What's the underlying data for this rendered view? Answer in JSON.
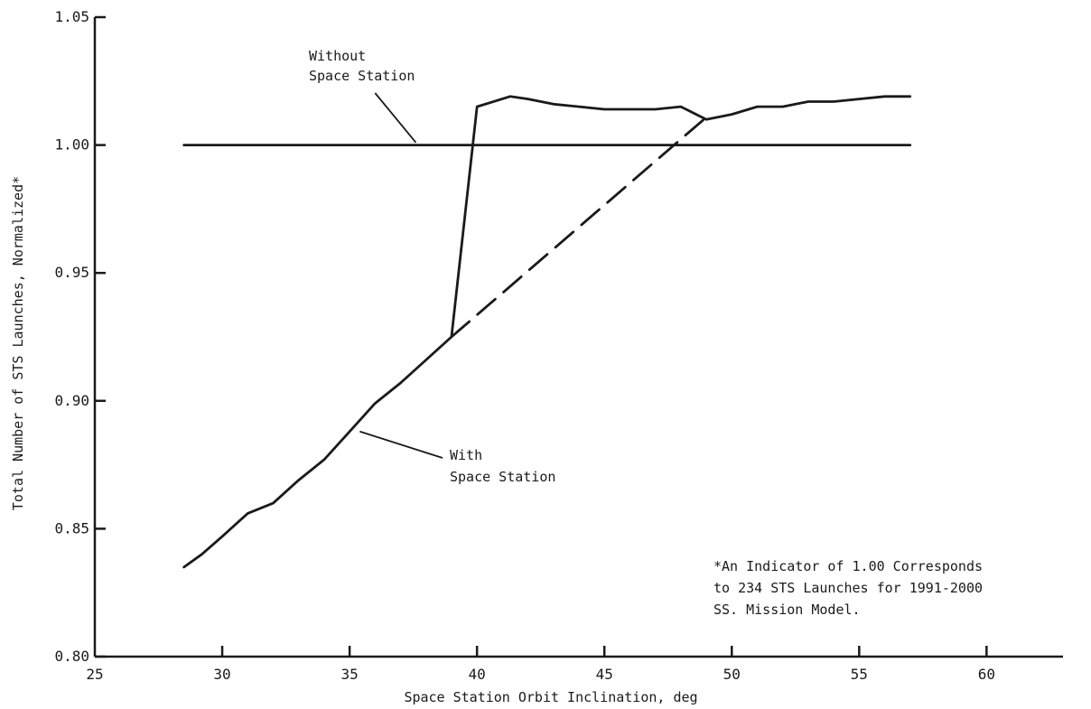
{
  "chart_data": {
    "type": "line",
    "title": "",
    "xlabel": "Space Station Orbit Inclination, deg",
    "ylabel": "Total Number of STS Launches, Normalized*",
    "xlim": [
      25,
      63
    ],
    "ylim": [
      0.8,
      1.05
    ],
    "x_ticks": [
      25,
      30,
      35,
      40,
      45,
      50,
      55,
      60
    ],
    "y_ticks": [
      0.8,
      0.85,
      0.9,
      0.95,
      1.0,
      1.05
    ],
    "x_tick_labels": [
      "25",
      "30",
      "35",
      "40",
      "45",
      "50",
      "55",
      "60"
    ],
    "y_tick_labels": [
      "0.80",
      "0.85",
      "0.90",
      "0.95",
      "1.00",
      "1.05"
    ],
    "grid": false,
    "series": [
      {
        "name": "Without Space Station",
        "style": "solid",
        "x": [
          28.5,
          57
        ],
        "y": [
          1.0,
          1.0
        ]
      },
      {
        "name": "With Space Station",
        "style": "solid",
        "x": [
          28.5,
          29.2,
          30,
          31,
          32,
          33,
          34,
          35,
          36,
          37,
          38,
          39,
          40,
          41.3,
          42,
          43,
          44,
          45,
          46,
          47,
          48,
          49,
          50,
          51,
          52,
          53,
          54,
          55,
          56,
          57
        ],
        "y": [
          0.835,
          0.84,
          0.847,
          0.856,
          0.86,
          0.869,
          0.877,
          0.888,
          0.899,
          0.907,
          0.916,
          0.925,
          1.015,
          1.019,
          1.018,
          1.016,
          1.015,
          1.014,
          1.014,
          1.014,
          1.015,
          1.01,
          1.012,
          1.015,
          1.015,
          1.017,
          1.017,
          1.018,
          1.019,
          1.019
        ]
      },
      {
        "name": "",
        "style": "dashed",
        "x": [
          39,
          48.9
        ],
        "y": [
          0.925,
          1.01
        ]
      }
    ],
    "annotations": {
      "without_label": [
        "Without",
        "Space Station"
      ],
      "with_label": [
        "With",
        "Space Station"
      ],
      "footnote": [
        "*An Indicator of 1.00 Corresponds",
        "to 234 STS Launches for 1991-2000",
        "SS. Mission Model."
      ]
    }
  }
}
